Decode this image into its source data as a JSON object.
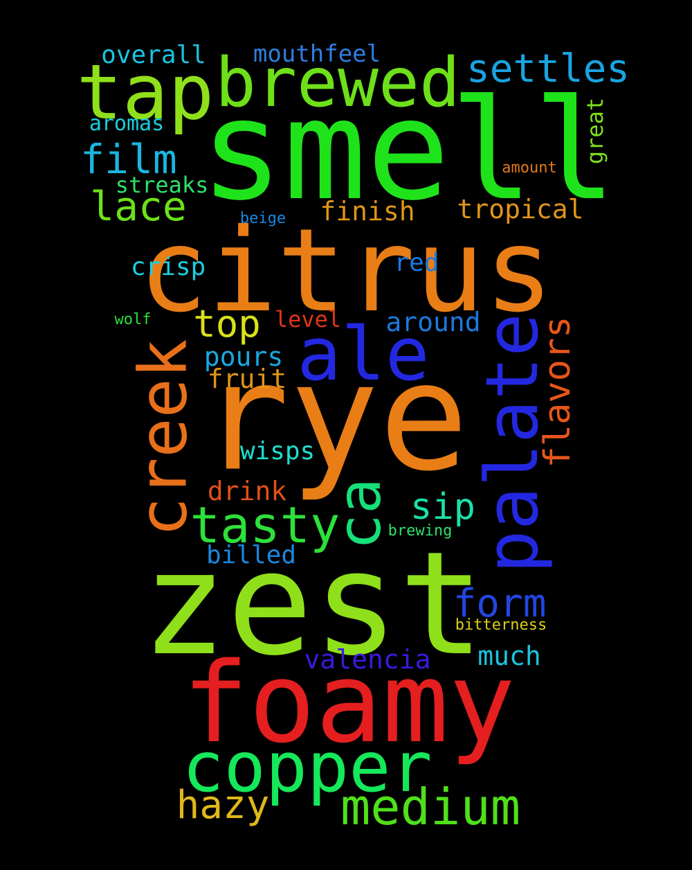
{
  "words": [
    {
      "key": "smell",
      "text": "smell",
      "color": "#1fe31a"
    },
    {
      "key": "citrus",
      "text": "citrus",
      "color": "#e97e16"
    },
    {
      "key": "rye",
      "text": "rye",
      "color": "#e97e16"
    },
    {
      "key": "zest",
      "text": "zest",
      "color": "#8fe01a"
    },
    {
      "key": "foamy",
      "text": "foamy",
      "color": "#e51f1f"
    },
    {
      "key": "copper",
      "text": "copper",
      "color": "#15e85a"
    },
    {
      "key": "brewed",
      "text": "brewed",
      "color": "#6de01a"
    },
    {
      "key": "tap",
      "text": "tap",
      "color": "#8fe01a"
    },
    {
      "key": "palate",
      "text": "palate",
      "color": "#2328e0"
    },
    {
      "key": "creek",
      "text": "creek",
      "color": "#e8701a"
    },
    {
      "key": "ale",
      "text": "ale",
      "color": "#2328e0"
    },
    {
      "key": "ca",
      "text": "ca",
      "color": "#16e07a"
    },
    {
      "key": "tasty",
      "text": "tasty",
      "color": "#2ee03a"
    },
    {
      "key": "medium",
      "text": "medium",
      "color": "#4fe01a"
    },
    {
      "key": "settles",
      "text": "settles",
      "color": "#1aa3e0"
    },
    {
      "key": "film",
      "text": "film",
      "color": "#1ab6e0"
    },
    {
      "key": "lace",
      "text": "lace",
      "color": "#6de01a"
    },
    {
      "key": "flavors",
      "text": "flavors",
      "color": "#e8561a"
    },
    {
      "key": "form",
      "text": "form",
      "color": "#2346e0"
    },
    {
      "key": "hazy",
      "text": "hazy",
      "color": "#e0b81a"
    },
    {
      "key": "top",
      "text": "top",
      "color": "#d8e01a"
    },
    {
      "key": "sip",
      "text": "sip",
      "color": "#1ae0a8"
    },
    {
      "key": "overall",
      "text": "overall",
      "color": "#1ac4e0"
    },
    {
      "key": "mouthfeel",
      "text": "mouthfeel",
      "color": "#2e7fe0"
    },
    {
      "key": "finish",
      "text": "finish",
      "color": "#e0951a"
    },
    {
      "key": "tropical",
      "text": "tropical",
      "color": "#e0951a"
    },
    {
      "key": "around",
      "text": "around",
      "color": "#1a7ae0"
    },
    {
      "key": "valencia",
      "text": "valencia",
      "color": "#3a1ae0"
    },
    {
      "key": "much",
      "text": "much",
      "color": "#1ac4e0"
    },
    {
      "key": "pours",
      "text": "pours",
      "color": "#1aa8e0"
    },
    {
      "key": "fruit",
      "text": "fruit",
      "color": "#e0951a"
    },
    {
      "key": "crisp",
      "text": "crisp",
      "color": "#1ad0e0"
    },
    {
      "key": "red",
      "text": "red",
      "color": "#1a7ae0"
    },
    {
      "key": "level",
      "text": "level",
      "color": "#e0361a"
    },
    {
      "key": "wisps",
      "text": "wisps",
      "color": "#1ae0d0"
    },
    {
      "key": "drink",
      "text": "drink",
      "color": "#e0501a"
    },
    {
      "key": "billed",
      "text": "billed",
      "color": "#1a88e0"
    },
    {
      "key": "streaks",
      "text": "streaks",
      "color": "#2ee06a"
    },
    {
      "key": "aromas",
      "text": "aromas",
      "color": "#1ad0e0"
    },
    {
      "key": "great",
      "text": "great",
      "color": "#7ee01a"
    },
    {
      "key": "amount",
      "text": "amount",
      "color": "#e07a1a"
    },
    {
      "key": "beige",
      "text": "beige",
      "color": "#1a88e0"
    },
    {
      "key": "wolf",
      "text": "wolf",
      "color": "#2ee03a"
    },
    {
      "key": "brewing",
      "text": "brewing",
      "color": "#2ee06a"
    },
    {
      "key": "bitterness",
      "text": "bitterness",
      "color": "#e0d01a"
    }
  ]
}
